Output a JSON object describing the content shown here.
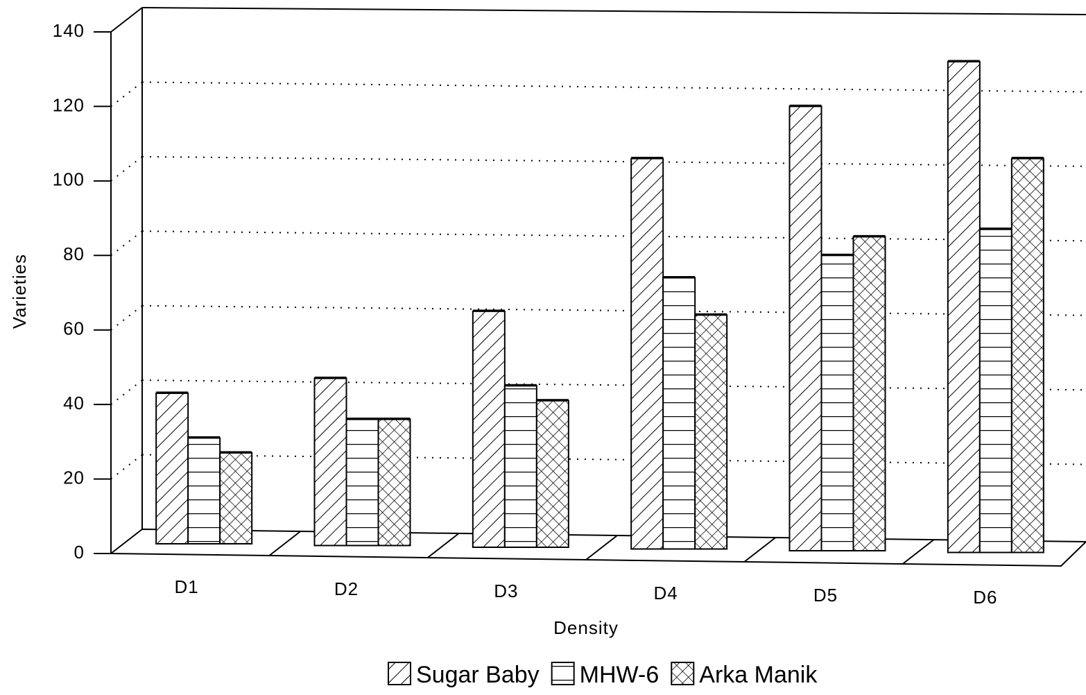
{
  "chart_data": {
    "type": "bar",
    "x_label": "Density",
    "y_label": "Varieties",
    "categories": [
      "D1",
      "D2",
      "D3",
      "D4",
      "D5",
      "D6"
    ],
    "series": [
      {
        "name": "Sugar Baby",
        "values": [
          43,
          47,
          65,
          106,
          120,
          132
        ]
      },
      {
        "name": "MHW-6",
        "values": [
          31,
          36,
          45,
          74,
          80,
          87
        ]
      },
      {
        "name": "Arka Manik",
        "values": [
          27,
          36,
          41,
          64,
          85,
          106
        ]
      }
    ],
    "ylim": [
      0,
      140
    ],
    "yticks": [
      0,
      20,
      40,
      60,
      80,
      100,
      120,
      140
    ],
    "grid": true,
    "legend": "bottom"
  }
}
